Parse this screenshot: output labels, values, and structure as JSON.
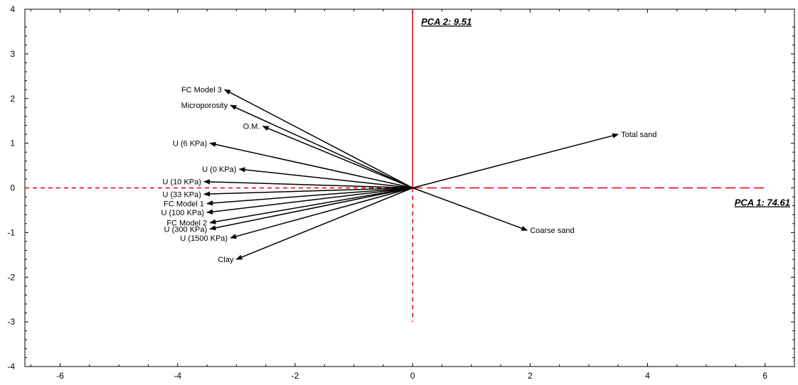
{
  "chart_data": {
    "type": "scatter",
    "subtype": "pca-biplot-vectors",
    "title": "",
    "xlim": [
      -6.6,
      6.5
    ],
    "ylim": [
      -4,
      4
    ],
    "x_ticks": [
      -6,
      -4,
      -2,
      0,
      2,
      4,
      6
    ],
    "y_ticks": [
      -4,
      -3,
      -2,
      -1,
      0,
      1,
      2,
      3,
      4
    ],
    "grid": false,
    "axis_labels": {
      "pca1": "PCA 1: 74.61",
      "pca2": "PCA 2: 9.51"
    },
    "reference_lines": {
      "horizontal_dashed_x_range": [
        -6.6,
        0
      ],
      "horizontal_longdash_x_range": [
        0,
        6.0
      ],
      "vertical_solid_y_range": [
        0,
        4
      ],
      "vertical_dashed_y_range": [
        -3,
        0
      ],
      "color": "#e00000"
    },
    "vectors": [
      {
        "label": "FC Model 3",
        "x": -3.2,
        "y": 2.2
      },
      {
        "label": "Microporosity",
        "x": -3.1,
        "y": 1.85
      },
      {
        "label": "O.M.",
        "x": -2.55,
        "y": 1.38
      },
      {
        "label": "U (6 KPa)",
        "x": -3.45,
        "y": 1.0
      },
      {
        "label": "U (0 KPa)",
        "x": -2.95,
        "y": 0.42
      },
      {
        "label": "U (10 KPa)",
        "x": -3.55,
        "y": 0.14
      },
      {
        "label": "U (33 KPa)",
        "x": -3.55,
        "y": -0.14
      },
      {
        "label": "FC Model 1",
        "x": -3.5,
        "y": -0.35
      },
      {
        "label": "U (100 KPa)",
        "x": -3.5,
        "y": -0.55
      },
      {
        "label": "FC Model 2",
        "x": -3.45,
        "y": -0.78
      },
      {
        "label": "U (300 KPa)",
        "x": -3.45,
        "y": -0.92
      },
      {
        "label": "U (1500 KPa)",
        "x": -3.1,
        "y": -1.12
      },
      {
        "label": "Clay",
        "x": -3.0,
        "y": -1.6
      },
      {
        "label": "Total sand",
        "x": 3.5,
        "y": 1.2
      },
      {
        "label": "Coarse sand",
        "x": 1.95,
        "y": -0.95
      }
    ]
  }
}
